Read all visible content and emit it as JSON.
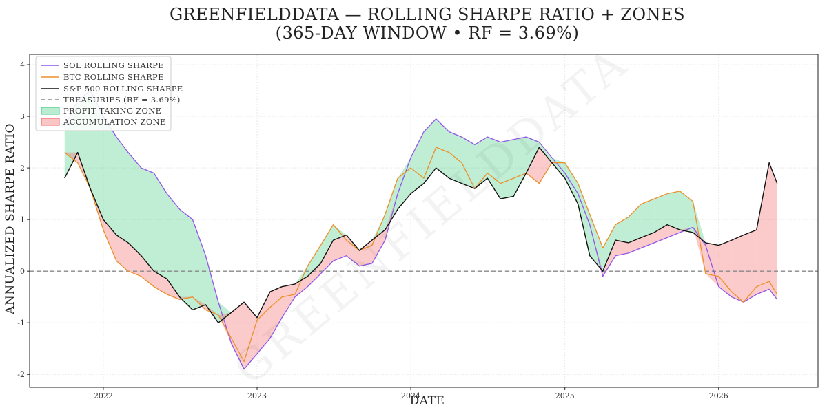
{
  "header": {
    "title_line1": "GREENFIELDDATA — ROLLING SHARPE RATIO + ZONES",
    "title_line2": "(365-DAY WINDOW • RF = 3.69%)"
  },
  "watermark": "GREENFIELDDATA",
  "colors": {
    "sol": "#9155e8",
    "btc": "#ec8f2a",
    "spx": "#111111",
    "treasury": "#888888",
    "profit_fill": "#38c97a",
    "accum_fill": "#f25c5c"
  },
  "chart_data": {
    "type": "line",
    "xlabel": "DATE",
    "ylabel": "ANNUALIZED SHARPE RATIO",
    "xlim": [
      "2021-07-10",
      "2026-08-25"
    ],
    "ylim": [
      -2.25,
      4.2
    ],
    "x_ticks": [
      "2022",
      "2023",
      "2024",
      "2025",
      "2026"
    ],
    "y_ticks": [
      -2,
      -1,
      0,
      1,
      2,
      3,
      4
    ],
    "grid": true,
    "legend_position": "upper-left",
    "x": [
      "2021-10-01",
      "2021-11-01",
      "2021-12-01",
      "2022-01-01",
      "2022-02-01",
      "2022-03-01",
      "2022-04-01",
      "2022-05-01",
      "2022-06-01",
      "2022-07-01",
      "2022-08-01",
      "2022-09-01",
      "2022-10-01",
      "2022-11-01",
      "2022-12-01",
      "2023-01-01",
      "2023-02-01",
      "2023-03-01",
      "2023-04-01",
      "2023-05-01",
      "2023-06-01",
      "2023-07-01",
      "2023-08-01",
      "2023-09-01",
      "2023-10-01",
      "2023-11-01",
      "2023-12-01",
      "2024-01-01",
      "2024-02-01",
      "2024-03-01",
      "2024-04-01",
      "2024-05-01",
      "2024-06-01",
      "2024-07-01",
      "2024-08-01",
      "2024-09-01",
      "2024-10-01",
      "2024-11-01",
      "2024-12-01",
      "2025-01-01",
      "2025-02-01",
      "2025-03-01",
      "2025-04-01",
      "2025-05-01",
      "2025-06-01",
      "2025-07-01",
      "2025-08-01",
      "2025-09-01",
      "2025-10-01",
      "2025-11-01",
      "2025-12-01",
      "2026-01-01",
      "2026-02-01",
      "2026-03-01",
      "2026-04-01",
      "2026-05-01",
      "2026-05-20"
    ],
    "series": [
      {
        "name": "SOL ROLLING SHARPE",
        "values": [
          2.8,
          3.3,
          3.5,
          3.0,
          2.6,
          2.3,
          2.0,
          1.9,
          1.5,
          1.2,
          1.0,
          0.3,
          -0.6,
          -1.4,
          -1.9,
          -1.6,
          -1.3,
          -0.9,
          -0.5,
          -0.3,
          -0.05,
          0.2,
          0.3,
          0.1,
          0.15,
          0.6,
          1.5,
          2.2,
          2.7,
          2.95,
          2.7,
          2.6,
          2.45,
          2.6,
          2.5,
          2.55,
          2.6,
          2.5,
          2.2,
          1.9,
          1.5,
          0.9,
          -0.1,
          0.3,
          0.35,
          0.45,
          0.55,
          0.65,
          0.75,
          0.85,
          0.5,
          -0.3,
          -0.5,
          -0.6,
          -0.45,
          -0.35,
          -0.55
        ]
      },
      {
        "name": "BTC ROLLING SHARPE",
        "values": [
          2.3,
          2.1,
          1.6,
          0.8,
          0.2,
          0.0,
          -0.1,
          -0.3,
          -0.45,
          -0.55,
          -0.5,
          -0.75,
          -0.85,
          -1.3,
          -1.75,
          -0.95,
          -0.7,
          -0.5,
          -0.45,
          0.1,
          0.5,
          0.9,
          0.6,
          0.4,
          0.5,
          1.1,
          1.8,
          2.0,
          1.8,
          2.4,
          2.3,
          2.1,
          1.6,
          1.9,
          1.7,
          1.8,
          1.9,
          1.7,
          2.1,
          2.1,
          1.7,
          1.1,
          0.45,
          0.9,
          1.05,
          1.3,
          1.4,
          1.5,
          1.55,
          1.35,
          -0.05,
          -0.1,
          -0.4,
          -0.6,
          -0.3,
          -0.2,
          -0.45
        ]
      },
      {
        "name": "S&P 500 ROLLING SHARPE",
        "values": [
          1.8,
          2.3,
          1.6,
          1.0,
          0.7,
          0.55,
          0.3,
          0.0,
          -0.15,
          -0.5,
          -0.75,
          -0.65,
          -1.0,
          -0.8,
          -0.6,
          -0.9,
          -0.4,
          -0.3,
          -0.25,
          -0.1,
          0.15,
          0.6,
          0.7,
          0.4,
          0.6,
          0.8,
          1.2,
          1.5,
          1.7,
          2.0,
          1.8,
          1.7,
          1.6,
          1.8,
          1.4,
          1.45,
          1.9,
          2.4,
          2.1,
          1.8,
          1.3,
          0.3,
          0.0,
          0.6,
          0.55,
          0.65,
          0.75,
          0.9,
          0.8,
          0.75,
          0.55,
          0.5,
          0.6,
          0.7,
          0.8,
          2.1,
          1.7
        ]
      }
    ],
    "reference_line": {
      "name": "TREASURIES (RF = 3.69%)",
      "y": 0
    },
    "zones": [
      {
        "name": "PROFIT TAKING ZONE",
        "color": "#38c97a"
      },
      {
        "name": "ACCUMULATION ZONE",
        "color": "#f25c5c"
      }
    ]
  }
}
